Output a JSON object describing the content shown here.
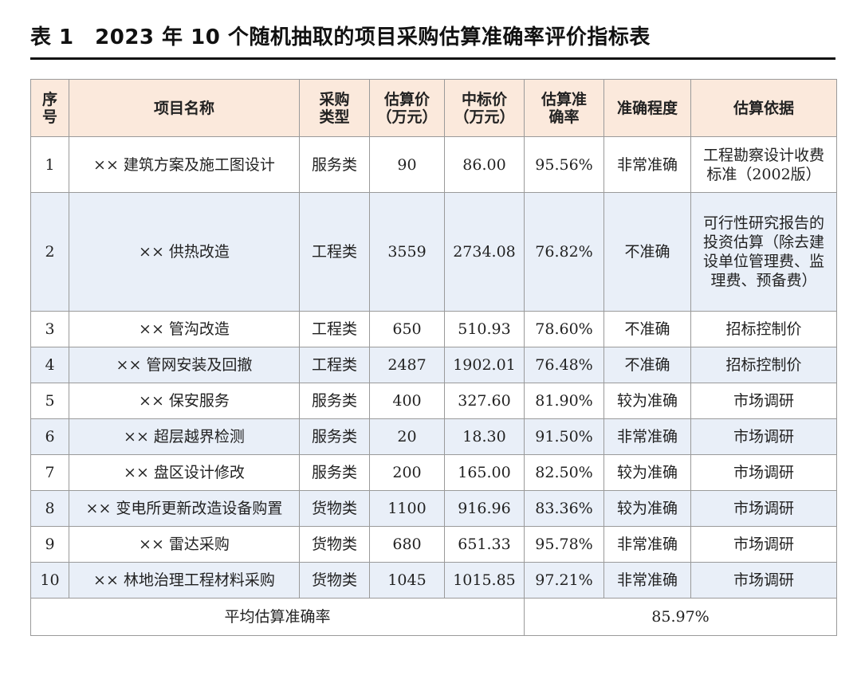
{
  "caption": "表 1　2023 年 10 个随机抽取的项目采购估算准确率评价指标表",
  "headers": {
    "seq": "序号",
    "name": "项目名称",
    "type": "采购类型",
    "estimate": "估算价（万元）",
    "bid": "中标价（万元）",
    "accuracy": "估算准确率",
    "degree": "准确程度",
    "basis": "估算依据"
  },
  "rows": [
    {
      "seq": "1",
      "name": "×× 建筑方案及施工图设计",
      "type": "服务类",
      "estimate": "90",
      "bid": "86.00",
      "accuracy": "95.56%",
      "degree": "非常准确",
      "basis": "工程勘察设计收费标准（2002版）"
    },
    {
      "seq": "2",
      "name": "×× 供热改造",
      "type": "工程类",
      "estimate": "3559",
      "bid": "2734.08",
      "accuracy": "76.82%",
      "degree": "不准确",
      "basis": "可行性研究报告的投资估算（除去建设单位管理费、监理费、预备费）"
    },
    {
      "seq": "3",
      "name": "×× 管沟改造",
      "type": "工程类",
      "estimate": "650",
      "bid": "510.93",
      "accuracy": "78.60%",
      "degree": "不准确",
      "basis": "招标控制价"
    },
    {
      "seq": "4",
      "name": "×× 管网安装及回撤",
      "type": "工程类",
      "estimate": "2487",
      "bid": "1902.01",
      "accuracy": "76.48%",
      "degree": "不准确",
      "basis": "招标控制价"
    },
    {
      "seq": "5",
      "name": "×× 保安服务",
      "type": "服务类",
      "estimate": "400",
      "bid": "327.60",
      "accuracy": "81.90%",
      "degree": "较为准确",
      "basis": "市场调研"
    },
    {
      "seq": "6",
      "name": "×× 超层越界检测",
      "type": "服务类",
      "estimate": "20",
      "bid": "18.30",
      "accuracy": "91.50%",
      "degree": "非常准确",
      "basis": "市场调研"
    },
    {
      "seq": "7",
      "name": "×× 盘区设计修改",
      "type": "服务类",
      "estimate": "200",
      "bid": "165.00",
      "accuracy": "82.50%",
      "degree": "较为准确",
      "basis": "市场调研"
    },
    {
      "seq": "8",
      "name": "×× 变电所更新改造设备购置",
      "type": "货物类",
      "estimate": "1100",
      "bid": "916.96",
      "accuracy": "83.36%",
      "degree": "较为准确",
      "basis": "市场调研"
    },
    {
      "seq": "9",
      "name": "×× 雷达采购",
      "type": "货物类",
      "estimate": "680",
      "bid": "651.33",
      "accuracy": "95.78%",
      "degree": "非常准确",
      "basis": "市场调研"
    },
    {
      "seq": "10",
      "name": "×× 林地治理工程材料采购",
      "type": "货物类",
      "estimate": "1045",
      "bid": "1015.85",
      "accuracy": "97.21%",
      "degree": "非常准确",
      "basis": "市场调研"
    }
  ],
  "summary": {
    "label": "平均估算准确率",
    "value": "85.97%"
  },
  "colors": {
    "header_bg": "#fbe9dc",
    "alt_row_bg": "#e9eff8",
    "border": "#9a9a9a"
  }
}
